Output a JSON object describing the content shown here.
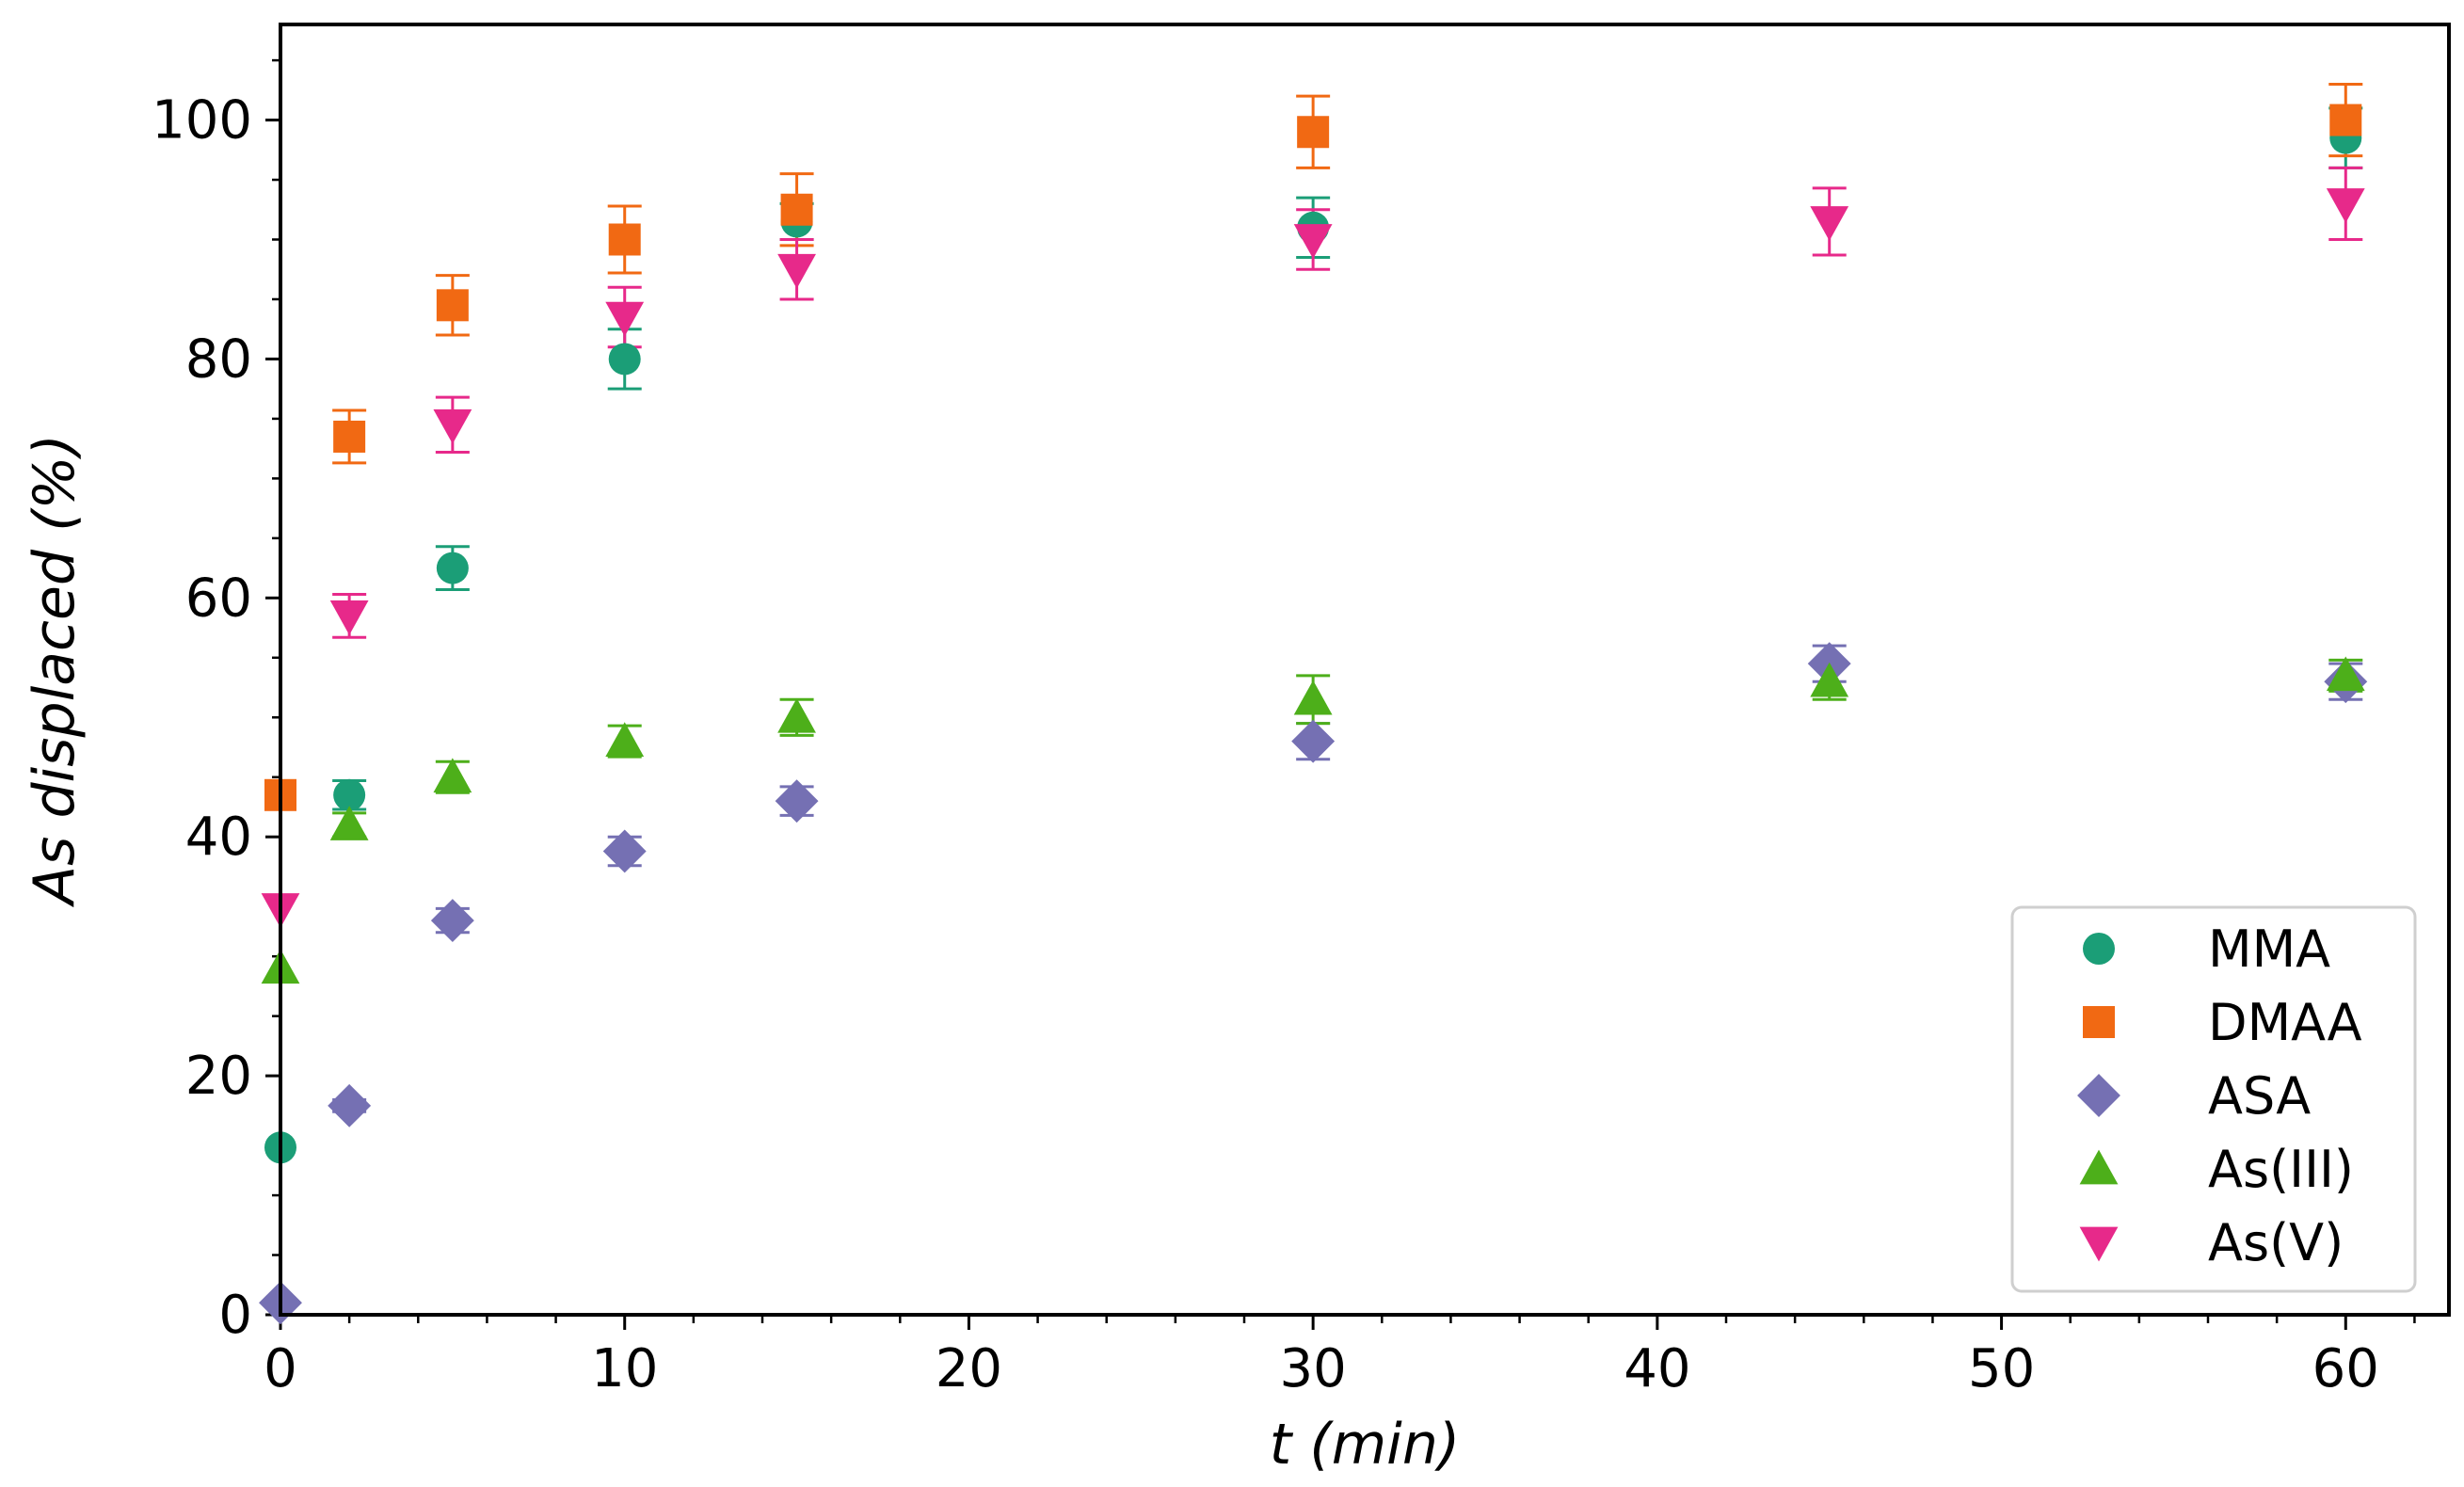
{
  "chart_data": {
    "type": "scatter",
    "title": "",
    "xlabel": "t (min)",
    "ylabel": "As displaced (%)",
    "xlim": [
      0,
      63
    ],
    "ylim": [
      0,
      108
    ],
    "xticks": [
      0,
      10,
      20,
      30,
      40,
      50,
      60
    ],
    "yticks": [
      0,
      20,
      40,
      60,
      80,
      100
    ],
    "x_tick_labels": [
      "0",
      "10",
      "20",
      "30",
      "40",
      "50",
      "60"
    ],
    "y_tick_labels": [
      "0",
      "20",
      "40",
      "60",
      "80",
      "100"
    ],
    "x_minor_step": 2,
    "y_minor_step": 5,
    "grid": false,
    "legend_position": "lower-right",
    "series": [
      {
        "name": "MMA",
        "marker": "circle",
        "color": "#1b9e77",
        "x": [
          0,
          2,
          5,
          10,
          15,
          30,
          60
        ],
        "y": [
          14,
          43.5,
          62.5,
          80,
          91.5,
          91,
          98.5
        ],
        "err": [
          0,
          1.2,
          1.8,
          2.5,
          1.5,
          2.5,
          2.5
        ]
      },
      {
        "name": "DMAA",
        "marker": "square",
        "color": "#f16913",
        "x": [
          0,
          2,
          5,
          10,
          15,
          30,
          60
        ],
        "y": [
          43.5,
          73.5,
          84.5,
          90,
          92.5,
          99,
          100
        ],
        "err": [
          0,
          2.2,
          2.5,
          2.8,
          3,
          3,
          3
        ]
      },
      {
        "name": "ASA",
        "marker": "diamond",
        "color": "#7570b3",
        "x": [
          0,
          2,
          5,
          10,
          15,
          30,
          45,
          60
        ],
        "y": [
          1,
          17.5,
          33,
          38.8,
          43,
          48,
          54.5,
          53
        ],
        "err": [
          0,
          0.5,
          1,
          1.2,
          1.2,
          1.5,
          1.5,
          1.5
        ]
      },
      {
        "name": "As(III)",
        "marker": "triangle-up",
        "color": "#4daf1a",
        "x": [
          0,
          2,
          5,
          10,
          15,
          30,
          45,
          60
        ],
        "y": [
          29,
          41,
          45,
          48,
          50,
          51.5,
          53,
          53.5
        ],
        "err": [
          0,
          1,
          1.3,
          1.3,
          1.5,
          2,
          1.5,
          1.3
        ]
      },
      {
        "name": "As(V)",
        "marker": "triangle-down",
        "color": "#e7298a",
        "x": [
          0,
          2,
          5,
          10,
          15,
          30,
          45,
          60
        ],
        "y": [
          34,
          58.5,
          74.5,
          83.5,
          87.5,
          90,
          91.5,
          93
        ],
        "err": [
          0,
          1.8,
          2.3,
          2.5,
          2.5,
          2.5,
          2.8,
          3
        ]
      }
    ]
  }
}
